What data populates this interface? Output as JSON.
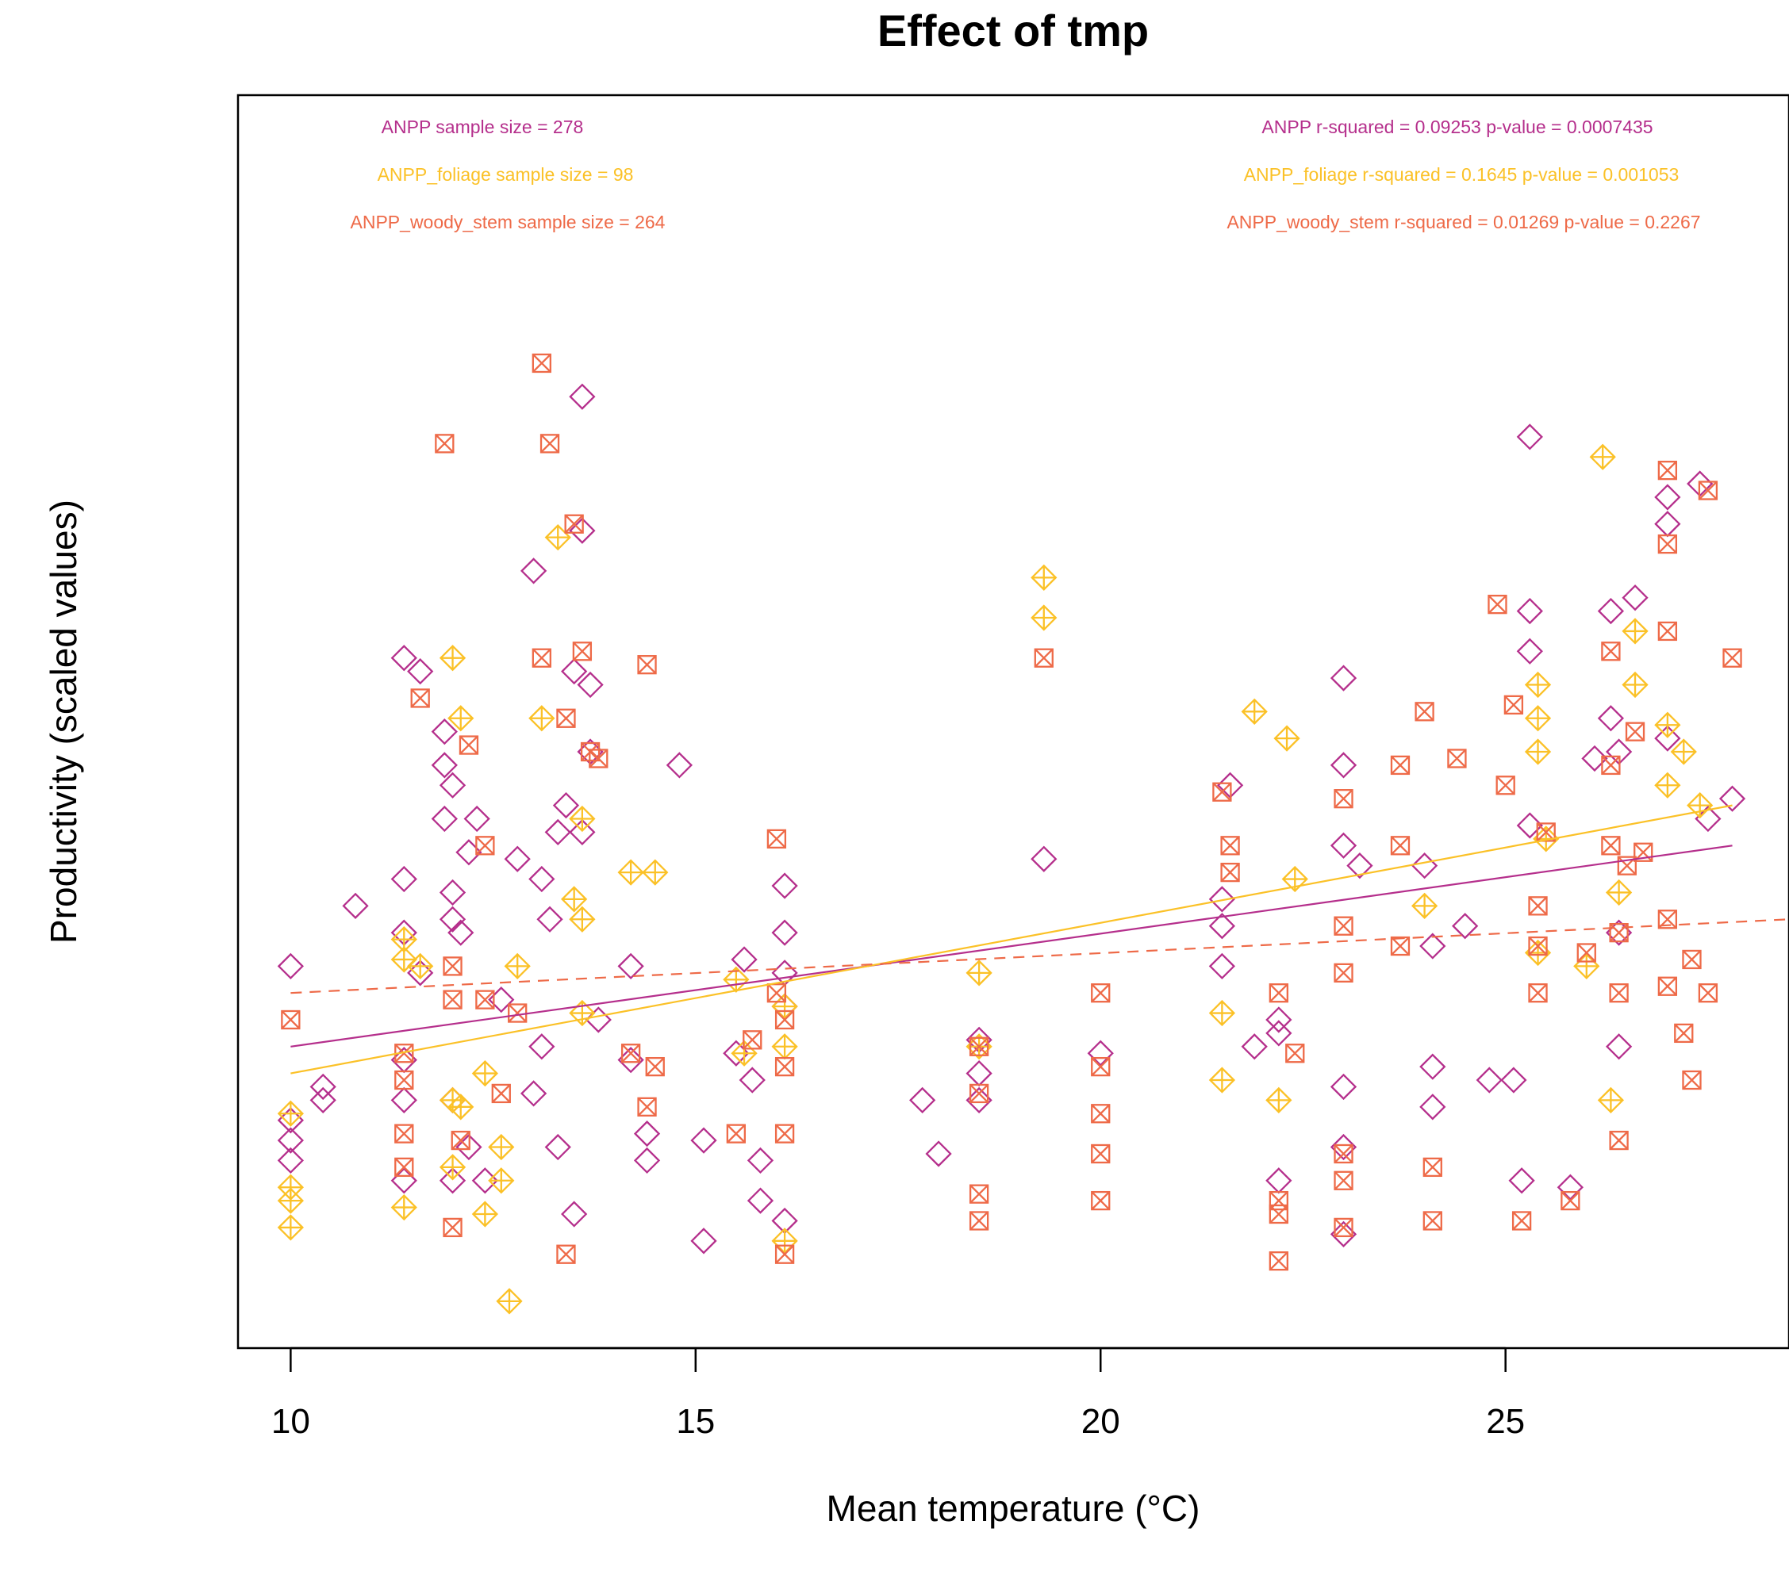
{
  "chart_data": {
    "type": "scatter",
    "title": "Effect of tmp",
    "xlabel": "Mean temperature (°C)",
    "ylabel": "Productivity (scaled values)",
    "xlim": [
      9.35,
      28.5
    ],
    "ylim": [
      -2.8,
      6.55
    ],
    "x_ticks": [
      10,
      15,
      20,
      25
    ],
    "y_ticks_shown": false,
    "grid": false,
    "colors": {
      "ANPP": "#b52f8c",
      "ANPP_foliage": "#fbc127",
      "ANPP_woody_stem": "#ee6a48"
    },
    "annotations": {
      "left": [
        "ANPP sample size = 278",
        "ANPP_foliage sample size = 98",
        "ANPP_woody_stem sample size = 264"
      ],
      "right": [
        "ANPP r-squared =  0.09253 p-value =  0.0007435",
        "ANPP_foliage r-squared =  0.1645 p-value =  0.001053",
        "ANPP_woody_stem r-squared =  0.01269 p-value =  0.2267"
      ]
    },
    "series": [
      {
        "name": "ANPP",
        "marker": "diamond",
        "color": "#b52f8c",
        "fit": {
          "style": "solid",
          "x": [
            10.0,
            27.8
          ],
          "y": [
            -0.55,
            0.95
          ]
        },
        "points": [
          [
            10.0,
            0.05
          ],
          [
            10.0,
            -1.1
          ],
          [
            10.0,
            -1.25
          ],
          [
            10.0,
            -1.4
          ],
          [
            10.4,
            -0.85
          ],
          [
            10.4,
            -0.95
          ],
          [
            10.8,
            0.5
          ],
          [
            11.4,
            2.35
          ],
          [
            11.4,
            0.7
          ],
          [
            11.4,
            0.3
          ],
          [
            11.4,
            -0.65
          ],
          [
            11.4,
            -0.95
          ],
          [
            11.4,
            -1.55
          ],
          [
            11.6,
            2.25
          ],
          [
            11.6,
            0.0
          ],
          [
            11.9,
            1.8
          ],
          [
            11.9,
            1.55
          ],
          [
            11.9,
            1.15
          ],
          [
            12.0,
            1.4
          ],
          [
            12.0,
            0.6
          ],
          [
            12.0,
            0.4
          ],
          [
            12.0,
            -0.95
          ],
          [
            12.0,
            -1.55
          ],
          [
            12.1,
            0.3
          ],
          [
            12.2,
            0.9
          ],
          [
            12.3,
            1.15
          ],
          [
            12.2,
            -1.3
          ],
          [
            12.4,
            -1.55
          ],
          [
            12.6,
            -0.2
          ],
          [
            12.8,
            0.85
          ],
          [
            13.0,
            -0.9
          ],
          [
            13.0,
            3.0
          ],
          [
            13.1,
            -0.55
          ],
          [
            13.1,
            0.7
          ],
          [
            13.2,
            0.4
          ],
          [
            13.3,
            1.05
          ],
          [
            13.3,
            -1.3
          ],
          [
            13.4,
            1.25
          ],
          [
            13.5,
            2.25
          ],
          [
            13.6,
            4.3
          ],
          [
            13.6,
            3.3
          ],
          [
            13.6,
            1.05
          ],
          [
            13.7,
            2.15
          ],
          [
            13.7,
            1.65
          ],
          [
            13.8,
            -0.35
          ],
          [
            13.5,
            -1.8
          ],
          [
            14.2,
            0.05
          ],
          [
            14.2,
            -0.65
          ],
          [
            14.4,
            -1.2
          ],
          [
            14.4,
            -1.4
          ],
          [
            14.8,
            1.55
          ],
          [
            15.1,
            -1.25
          ],
          [
            15.1,
            -2.0
          ],
          [
            15.5,
            -0.6
          ],
          [
            15.6,
            0.1
          ],
          [
            15.7,
            -0.8
          ],
          [
            15.8,
            -1.4
          ],
          [
            15.8,
            -1.7
          ],
          [
            16.1,
            0.65
          ],
          [
            16.1,
            0.3
          ],
          [
            16.1,
            0.0
          ],
          [
            16.1,
            -0.25
          ],
          [
            16.1,
            -1.85
          ],
          [
            17.8,
            -0.95
          ],
          [
            18.0,
            -1.35
          ],
          [
            18.5,
            -0.5
          ],
          [
            18.5,
            -0.75
          ],
          [
            18.5,
            -0.95
          ],
          [
            19.3,
            0.85
          ],
          [
            20.0,
            -0.6
          ],
          [
            21.5,
            0.55
          ],
          [
            21.5,
            0.35
          ],
          [
            21.5,
            0.05
          ],
          [
            21.6,
            1.4
          ],
          [
            21.9,
            -0.55
          ],
          [
            22.2,
            -0.45
          ],
          [
            22.2,
            -0.35
          ],
          [
            22.2,
            -1.55
          ],
          [
            23.0,
            2.2
          ],
          [
            23.0,
            1.55
          ],
          [
            23.0,
            0.95
          ],
          [
            23.0,
            -0.85
          ],
          [
            23.0,
            -1.3
          ],
          [
            23.0,
            -1.95
          ],
          [
            23.2,
            0.8
          ],
          [
            24.0,
            0.8
          ],
          [
            24.1,
            0.2
          ],
          [
            24.1,
            -0.7
          ],
          [
            24.1,
            -1.0
          ],
          [
            24.8,
            -0.8
          ],
          [
            25.1,
            -0.8
          ],
          [
            25.2,
            -1.55
          ],
          [
            25.3,
            4.0
          ],
          [
            25.3,
            2.7
          ],
          [
            25.3,
            2.4
          ],
          [
            25.3,
            1.1
          ],
          [
            25.8,
            -1.6
          ],
          [
            26.3,
            2.7
          ],
          [
            26.3,
            1.9
          ],
          [
            26.4,
            1.65
          ],
          [
            26.4,
            0.3
          ],
          [
            26.4,
            -0.55
          ],
          [
            26.6,
            2.8
          ],
          [
            27.0,
            3.55
          ],
          [
            27.0,
            3.35
          ],
          [
            27.0,
            1.75
          ],
          [
            27.4,
            3.65
          ],
          [
            27.5,
            1.15
          ],
          [
            27.8,
            1.3
          ],
          [
            26.1,
            1.6
          ],
          [
            24.5,
            0.35
          ]
        ]
      },
      {
        "name": "ANPP_foliage",
        "marker": "diamond-plus",
        "color": "#fbc127",
        "fit": {
          "style": "solid",
          "x": [
            10.0,
            27.8
          ],
          "y": [
            -0.75,
            1.25
          ]
        },
        "points": [
          [
            10.0,
            -1.05
          ],
          [
            10.0,
            -1.6
          ],
          [
            10.0,
            -1.7
          ],
          [
            10.0,
            -1.9
          ],
          [
            11.4,
            0.25
          ],
          [
            11.4,
            0.1
          ],
          [
            11.4,
            -1.75
          ],
          [
            11.6,
            0.05
          ],
          [
            12.0,
            2.35
          ],
          [
            12.0,
            -0.95
          ],
          [
            12.0,
            -1.45
          ],
          [
            12.1,
            1.9
          ],
          [
            12.1,
            -1.0
          ],
          [
            12.4,
            -0.75
          ],
          [
            12.4,
            -1.8
          ],
          [
            12.6,
            -1.3
          ],
          [
            12.6,
            -1.55
          ],
          [
            12.7,
            -2.45
          ],
          [
            12.8,
            0.05
          ],
          [
            13.1,
            1.9
          ],
          [
            13.3,
            3.25
          ],
          [
            13.5,
            0.55
          ],
          [
            13.6,
            0.4
          ],
          [
            13.6,
            -0.3
          ],
          [
            13.6,
            1.15
          ],
          [
            14.2,
            0.75
          ],
          [
            14.5,
            0.75
          ],
          [
            15.5,
            -0.05
          ],
          [
            15.6,
            -0.6
          ],
          [
            16.1,
            -0.25
          ],
          [
            16.1,
            -0.55
          ],
          [
            16.1,
            -2.0
          ],
          [
            18.5,
            0.0
          ],
          [
            18.5,
            -0.55
          ],
          [
            19.3,
            2.95
          ],
          [
            19.3,
            2.65
          ],
          [
            21.5,
            -0.3
          ],
          [
            21.5,
            -0.8
          ],
          [
            21.9,
            1.95
          ],
          [
            22.3,
            1.75
          ],
          [
            22.4,
            0.7
          ],
          [
            22.2,
            -0.95
          ],
          [
            24.0,
            0.5
          ],
          [
            25.4,
            2.15
          ],
          [
            25.4,
            1.9
          ],
          [
            25.4,
            1.65
          ],
          [
            25.5,
            1.0
          ],
          [
            26.0,
            0.05
          ],
          [
            26.2,
            3.85
          ],
          [
            26.4,
            0.6
          ],
          [
            26.6,
            2.55
          ],
          [
            26.6,
            2.15
          ],
          [
            27.0,
            1.85
          ],
          [
            27.0,
            1.4
          ],
          [
            27.2,
            1.65
          ],
          [
            27.4,
            1.25
          ],
          [
            26.3,
            -0.95
          ],
          [
            25.4,
            0.15
          ]
        ]
      },
      {
        "name": "ANPP_woody_stem",
        "marker": "square-x",
        "color": "#ee6a48",
        "fit": {
          "style": "dashed",
          "x": [
            10.0,
            28.5
          ],
          "y": [
            -0.15,
            0.4
          ]
        },
        "points": [
          [
            10.0,
            -0.35
          ],
          [
            11.4,
            -0.6
          ],
          [
            11.4,
            -0.8
          ],
          [
            11.4,
            -1.2
          ],
          [
            11.4,
            -1.45
          ],
          [
            11.6,
            2.05
          ],
          [
            11.9,
            3.95
          ],
          [
            12.0,
            0.05
          ],
          [
            12.0,
            -0.2
          ],
          [
            12.2,
            1.7
          ],
          [
            12.1,
            -1.25
          ],
          [
            12.0,
            -1.9
          ],
          [
            12.4,
            0.95
          ],
          [
            12.4,
            -0.2
          ],
          [
            12.6,
            -0.9
          ],
          [
            12.8,
            -0.3
          ],
          [
            13.1,
            4.55
          ],
          [
            13.1,
            2.35
          ],
          [
            13.2,
            3.95
          ],
          [
            13.4,
            1.9
          ],
          [
            13.5,
            3.35
          ],
          [
            13.6,
            2.4
          ],
          [
            13.7,
            1.65
          ],
          [
            13.8,
            1.6
          ],
          [
            13.4,
            -2.1
          ],
          [
            14.4,
            2.3
          ],
          [
            14.2,
            -0.6
          ],
          [
            14.5,
            -0.7
          ],
          [
            14.4,
            -1.0
          ],
          [
            15.5,
            -1.2
          ],
          [
            15.7,
            -0.5
          ],
          [
            16.0,
            1.0
          ],
          [
            16.0,
            -0.15
          ],
          [
            16.1,
            -0.35
          ],
          [
            16.1,
            -0.7
          ],
          [
            16.1,
            -1.2
          ],
          [
            16.1,
            -2.1
          ],
          [
            18.5,
            -0.55
          ],
          [
            18.5,
            -0.9
          ],
          [
            18.5,
            -1.65
          ],
          [
            18.5,
            -1.85
          ],
          [
            19.3,
            2.35
          ],
          [
            20.0,
            -0.15
          ],
          [
            20.0,
            -0.7
          ],
          [
            20.0,
            -1.05
          ],
          [
            20.0,
            -1.35
          ],
          [
            20.0,
            -1.7
          ],
          [
            21.5,
            1.35
          ],
          [
            21.6,
            0.95
          ],
          [
            21.6,
            0.75
          ],
          [
            22.2,
            -0.15
          ],
          [
            22.2,
            -1.7
          ],
          [
            22.2,
            -1.8
          ],
          [
            22.2,
            -2.15
          ],
          [
            22.4,
            -0.6
          ],
          [
            23.0,
            1.3
          ],
          [
            23.0,
            0.35
          ],
          [
            23.0,
            0.0
          ],
          [
            23.0,
            -1.35
          ],
          [
            23.0,
            -1.55
          ],
          [
            23.0,
            -1.9
          ],
          [
            23.7,
            0.2
          ],
          [
            23.7,
            1.55
          ],
          [
            23.7,
            0.95
          ],
          [
            24.0,
            1.95
          ],
          [
            24.4,
            1.6
          ],
          [
            24.1,
            -1.45
          ],
          [
            24.1,
            -1.85
          ],
          [
            24.9,
            2.75
          ],
          [
            25.0,
            1.4
          ],
          [
            25.1,
            2.0
          ],
          [
            25.2,
            -1.85
          ],
          [
            25.5,
            1.05
          ],
          [
            25.4,
            0.5
          ],
          [
            25.4,
            0.2
          ],
          [
            25.4,
            -0.15
          ],
          [
            26.3,
            2.4
          ],
          [
            26.3,
            1.55
          ],
          [
            26.3,
            0.95
          ],
          [
            26.4,
            0.3
          ],
          [
            26.4,
            -0.15
          ],
          [
            26.4,
            -1.25
          ],
          [
            26.6,
            1.8
          ],
          [
            26.7,
            0.9
          ],
          [
            27.0,
            3.75
          ],
          [
            27.0,
            3.2
          ],
          [
            27.0,
            2.55
          ],
          [
            27.0,
            0.4
          ],
          [
            27.0,
            -0.1
          ],
          [
            27.2,
            -0.45
          ],
          [
            27.3,
            -0.8
          ],
          [
            27.5,
            3.6
          ],
          [
            27.8,
            2.35
          ],
          [
            27.3,
            0.1
          ],
          [
            27.5,
            -0.15
          ],
          [
            26.0,
            0.15
          ],
          [
            25.8,
            -1.7
          ],
          [
            26.5,
            0.8
          ]
        ]
      }
    ]
  }
}
